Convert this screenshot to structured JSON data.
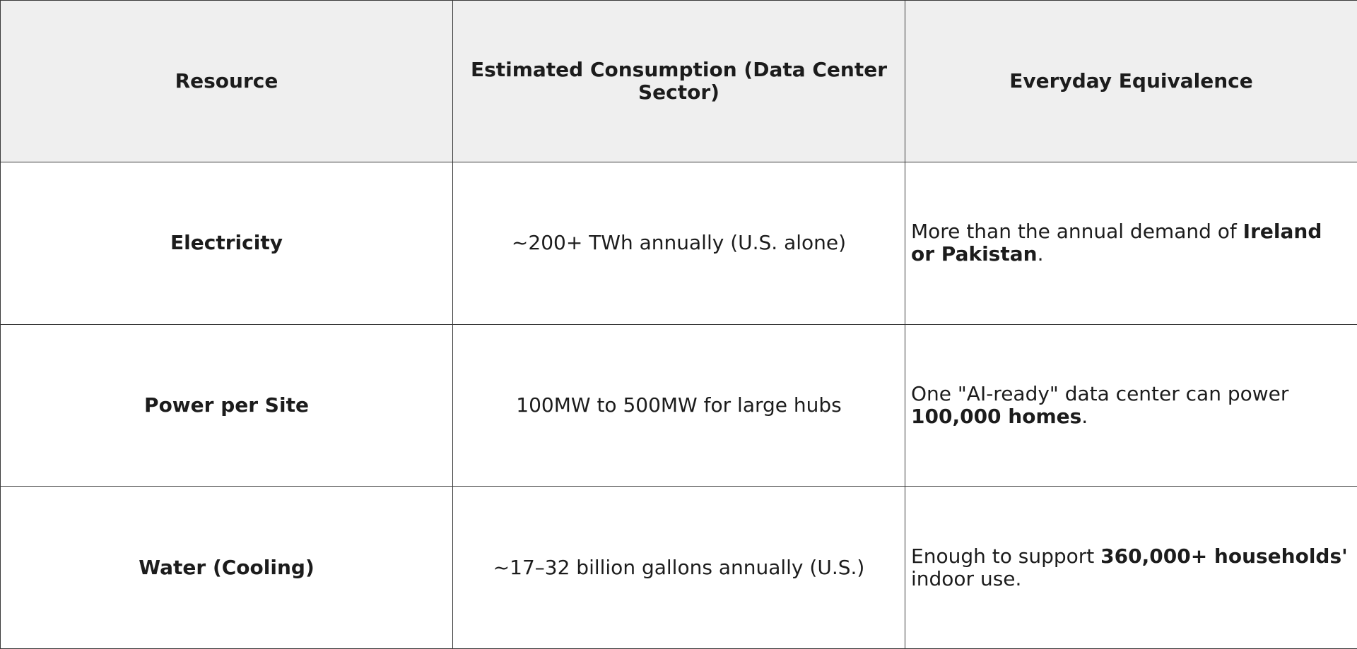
{
  "table": {
    "headers": [
      "Resource",
      "Estimated Consumption (Data Center Sector)",
      "Everyday Equivalence"
    ],
    "rows": [
      {
        "resource": "Electricity",
        "consumption": "~200+ TWh annually (U.S. alone)",
        "equivalence": {
          "before": "More than the annual demand of ",
          "bold": "Ireland or Pakistan",
          "after": "."
        }
      },
      {
        "resource": "Power per Site",
        "consumption": "100MW to 500MW for large hubs",
        "equivalence": {
          "before": "One \"AI-ready\" data center can power ",
          "bold": "100,000 homes",
          "after": "."
        }
      },
      {
        "resource": "Water (Cooling)",
        "consumption": "~17–32 billion gallons annually (U.S.)",
        "equivalence": {
          "before": "Enough to support ",
          "bold": "360,000+ households'",
          "after": " indoor use."
        }
      }
    ]
  }
}
